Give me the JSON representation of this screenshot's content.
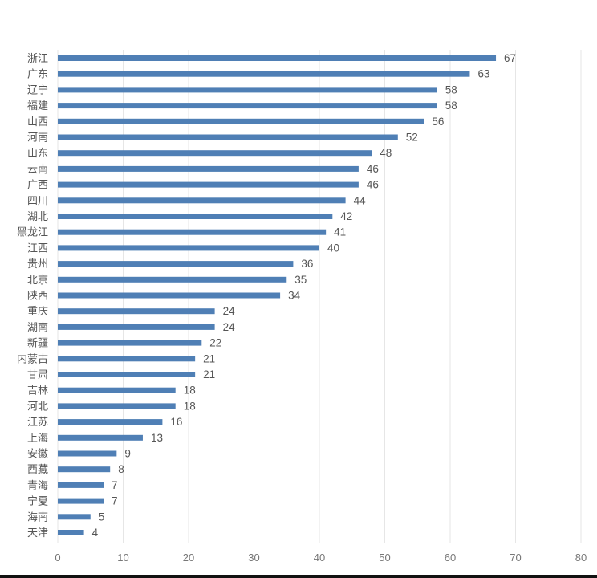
{
  "chart_data": {
    "type": "bar",
    "orientation": "horizontal",
    "categories": [
      "浙江",
      "广东",
      "辽宁",
      "福建",
      "山西",
      "河南",
      "山东",
      "云南",
      "广西",
      "四川",
      "湖北",
      "黑龙江",
      "江西",
      "贵州",
      "北京",
      "陕西",
      "重庆",
      "湖南",
      "新疆",
      "内蒙古",
      "甘肃",
      "吉林",
      "河北",
      "江苏",
      "上海",
      "安徽",
      "西藏",
      "青海",
      "宁夏",
      "海南",
      "天津"
    ],
    "values": [
      67,
      63,
      58,
      58,
      56,
      52,
      48,
      46,
      46,
      44,
      42,
      41,
      40,
      36,
      35,
      34,
      24,
      24,
      22,
      21,
      21,
      18,
      18,
      16,
      13,
      9,
      8,
      7,
      7,
      5,
      4
    ],
    "xlim": [
      0,
      80
    ],
    "xticks": [
      0,
      10,
      20,
      30,
      40,
      50,
      60,
      70,
      80
    ],
    "grid": "vertical",
    "title": "",
    "xlabel": "",
    "ylabel": "",
    "bar_color": "#4f7fb5"
  }
}
